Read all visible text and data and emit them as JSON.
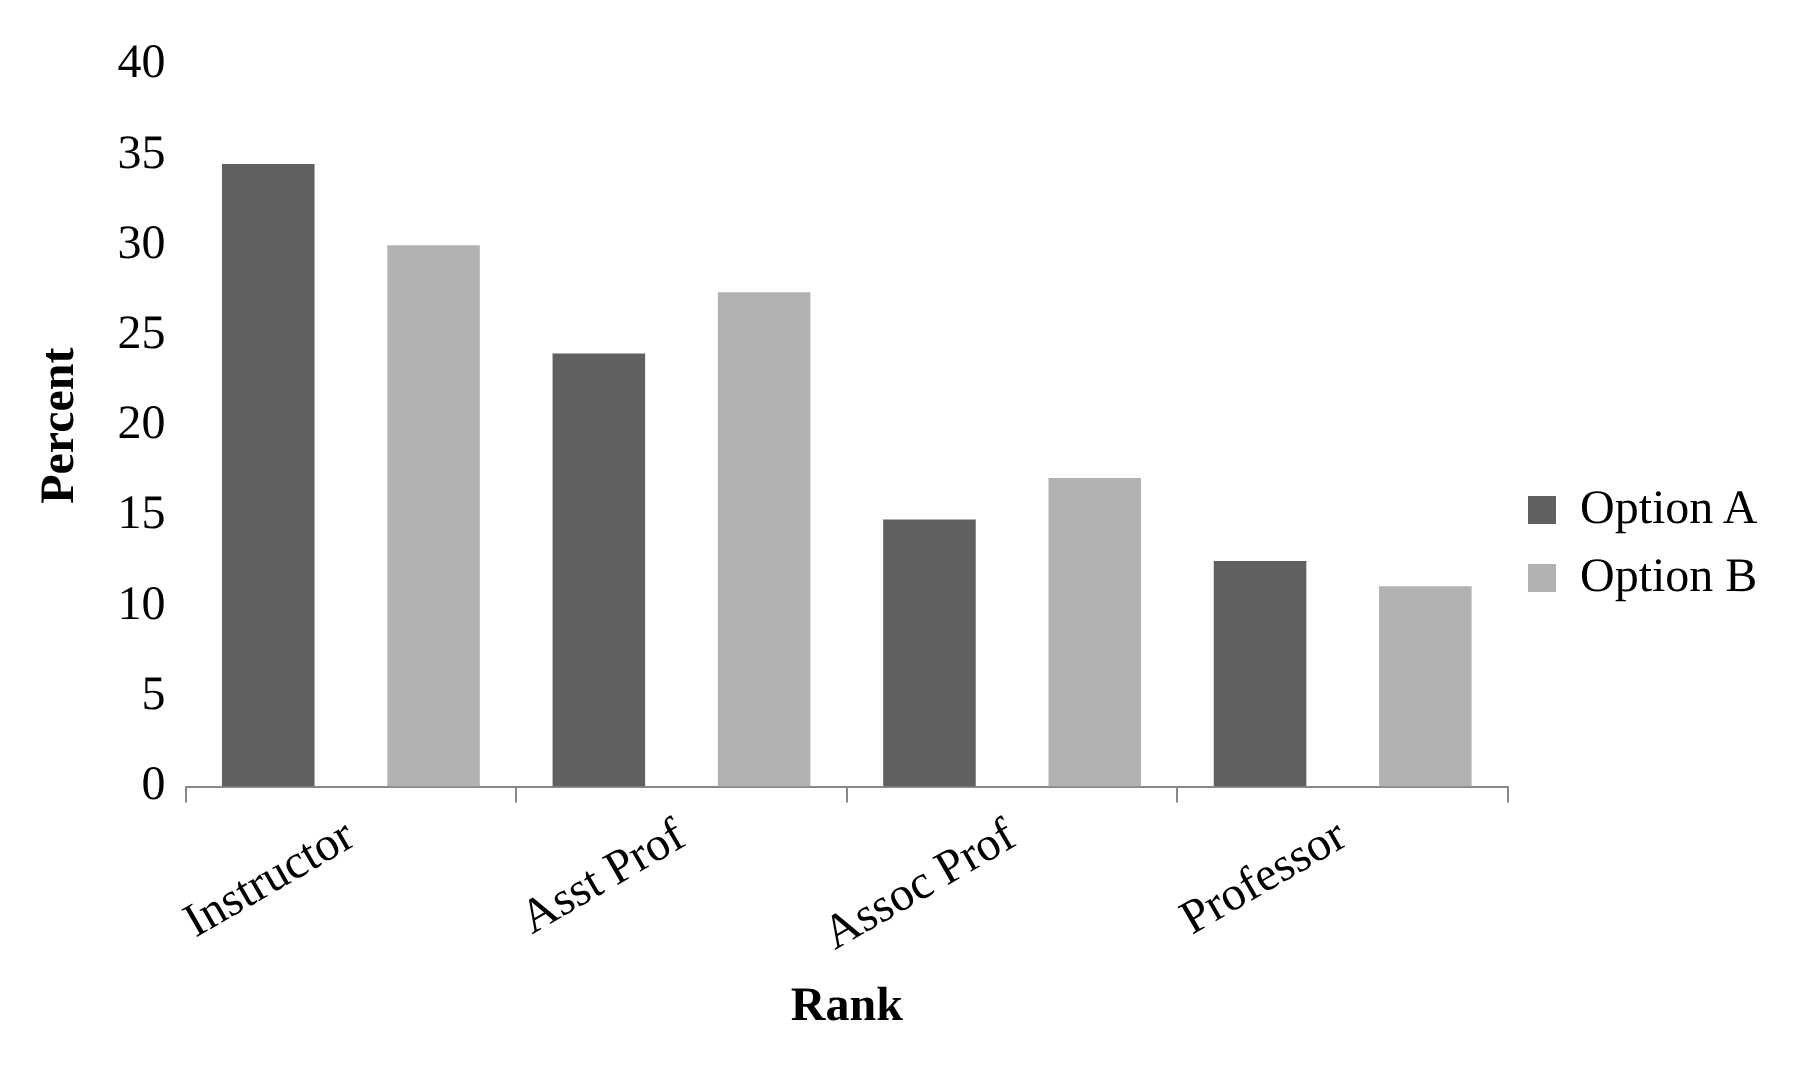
{
  "chart_data": {
    "type": "bar",
    "xlabel": "Rank",
    "ylabel": "Percent",
    "categories": [
      "Instructor",
      "Asst Prof",
      "Assoc Prof",
      "Professor"
    ],
    "series": [
      {
        "name": "Option A",
        "color": "#606060",
        "values": [
          34.5,
          24.0,
          14.8,
          12.5
        ]
      },
      {
        "name": "Option B",
        "color": "#b2b2b2",
        "values": [
          30.0,
          27.4,
          17.1,
          11.1
        ]
      }
    ],
    "ylim": [
      0,
      40
    ],
    "yticks": [
      0,
      5,
      10,
      15,
      20,
      25,
      30,
      35,
      40
    ],
    "grid": false,
    "legend": "right"
  }
}
